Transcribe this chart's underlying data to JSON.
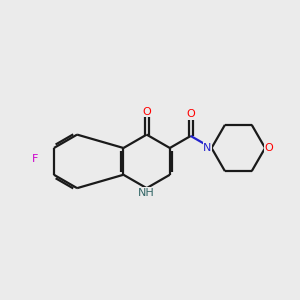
{
  "background_color": "#ebebeb",
  "bond_color": "#1a1a1a",
  "bond_width": 1.6,
  "atom_colors": {
    "F": "#cc00cc",
    "O": "#ff0000",
    "N_blue": "#2222cc",
    "N_NH": "#336666",
    "C": "#1a1a1a"
  },
  "figsize": [
    3.0,
    3.0
  ],
  "dpi": 100
}
